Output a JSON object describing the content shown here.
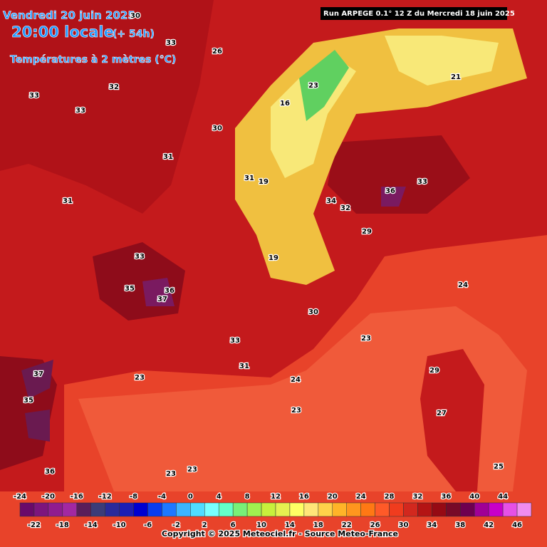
{
  "header": {
    "date": "Vendredi 20 juin 2025",
    "time": "20:00 locale",
    "lead": "(+ 54h)",
    "variable": "Températures à 2 mètres (°C)",
    "run": "Run ARPEGE 0.1° 12 Z du Mercredi 18 juin 2025"
  },
  "scale": {
    "values": [
      -24,
      -22,
      -20,
      -18,
      -16,
      -14,
      -12,
      -10,
      -8,
      -6,
      -4,
      -2,
      0,
      2,
      4,
      6,
      8,
      10,
      12,
      14,
      16,
      18,
      20,
      22,
      24,
      26,
      28,
      30,
      32,
      34,
      36,
      38,
      40,
      42,
      44,
      46
    ],
    "colors": [
      "#6a0a6a",
      "#7d157d",
      "#901c90",
      "#a228a2",
      "#5a1e5a",
      "#3c3c78",
      "#2a2a9a",
      "#1e1eb4",
      "#0000d0",
      "#0a3cf0",
      "#1e78ff",
      "#3cb4ff",
      "#50dcff",
      "#78ffff",
      "#64ffc8",
      "#78f078",
      "#a0f050",
      "#c8f03c",
      "#e6f050",
      "#ffff64",
      "#ffe678",
      "#ffd24a",
      "#ffb428",
      "#ff961e",
      "#ff7814",
      "#ff5a28",
      "#f03c1e",
      "#d2281e",
      "#b41414",
      "#960a14",
      "#780a28",
      "#6e0050",
      "#a00096",
      "#c800c8",
      "#e650e6",
      "#f08cf0"
    ]
  },
  "map_labels": [
    30,
    33,
    26,
    33,
    32,
    33,
    30,
    31,
    31,
    34,
    36,
    33,
    31,
    32,
    29,
    33,
    36,
    37,
    35,
    30,
    33,
    31,
    24,
    23,
    23,
    23,
    24,
    29,
    27,
    25,
    23,
    37,
    35,
    36,
    23,
    19,
    19,
    16,
    23,
    21
  ],
  "footer": "Copyright © 2025 Meteociel.fr - Source Meteo-France"
}
